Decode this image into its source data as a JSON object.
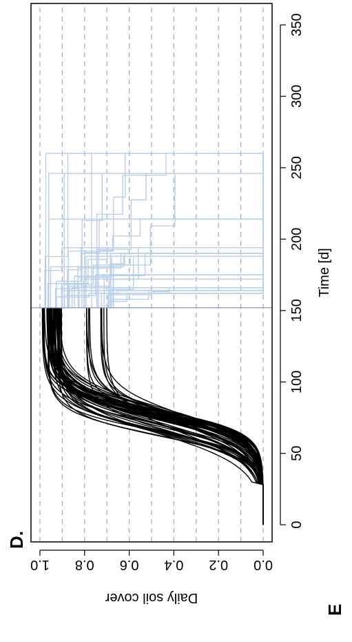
{
  "chart_data": {
    "type": "line",
    "panel_label": "D.",
    "next_panel_label": "E",
    "xlabel": "Time [d]",
    "ylabel": "Daily soil cover",
    "xlim": [
      -12,
      365
    ],
    "ylim": [
      -0.04,
      1.04
    ],
    "x_ticks": [
      0,
      50,
      100,
      150,
      200,
      250,
      300,
      350
    ],
    "x_tick_labels": [
      "0",
      "50",
      "100",
      "150",
      "200",
      "250",
      "300",
      "350"
    ],
    "y_ticks": [
      0.0,
      0.2,
      0.4,
      0.6,
      0.8,
      1.0
    ],
    "y_tick_labels": [
      "0.0",
      "0.2",
      "0.4",
      "0.6",
      "0.8",
      "1.0"
    ],
    "grid_y": [
      0.0,
      0.1,
      0.2,
      0.3,
      0.4,
      0.5,
      0.6,
      0.7,
      0.8,
      0.9,
      1.0
    ],
    "grid": "horizontal dashed",
    "orientation": "rotated 90° counter-clockwise",
    "vertical_line_x": 152,
    "colors": {
      "growth": "#000000",
      "post_harvest": "#b9cfe8",
      "grid": "#9aa9c2",
      "vline": "#9aa9c2"
    },
    "series": [
      {
        "color": "#000000",
        "description_x": [
          0,
          30,
          40,
          50,
          55,
          60,
          65,
          70,
          75,
          80,
          85,
          90,
          95,
          100,
          110,
          120,
          130,
          140,
          152
        ],
        "y_min": [
          0.0,
          0.0,
          0.0,
          0.01,
          0.02,
          0.05,
          0.12,
          0.25,
          0.45,
          0.63,
          0.75,
          0.82,
          0.86,
          0.88,
          0.72,
          0.75,
          0.76,
          0.78,
          0.78
        ],
        "y_max": [
          0.0,
          0.0,
          0.03,
          0.18,
          0.35,
          0.55,
          0.72,
          0.84,
          0.91,
          0.94,
          0.96,
          0.97,
          0.98,
          0.98,
          0.98,
          0.99,
          0.99,
          0.99,
          0.99
        ]
      },
      {
        "color": "#b9cfe8",
        "x_range": [
          152,
          260
        ],
        "plateau_y": [
          0.67,
          0.99
        ],
        "drop_times": [
          162,
          164,
          166,
          172,
          175,
          188,
          190,
          194,
          214,
          246,
          260
        ],
        "final_y": 0.0
      }
    ]
  }
}
